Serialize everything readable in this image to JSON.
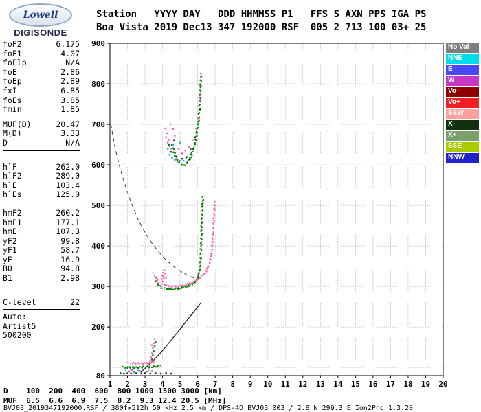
{
  "logo": {
    "name": "Lowell",
    "subtitle": "DIGISONDE"
  },
  "header": {
    "line1": "Station   YYYY DAY   DDD HHMMSS P1   FFS S AXN PPS IGA PS",
    "line2": "Boa Vista 2019 Dec13 347 192000 RSF  005 2 713 100 03+ 25"
  },
  "params": {
    "groups": [
      {
        "divider_after": true,
        "rows": [
          [
            "foF2",
            "6.175"
          ],
          [
            "foF1",
            "4.07"
          ],
          [
            "foFlp",
            "N/A"
          ],
          [
            "foE",
            "2.86"
          ],
          [
            "foEp",
            "2.89"
          ],
          [
            "fxI",
            "6.85"
          ],
          [
            "foEs",
            "3.85"
          ],
          [
            "fmin",
            "1.85"
          ]
        ]
      },
      {
        "divider_after": true,
        "rows": [
          [
            "MUF(D)",
            "20.47"
          ],
          [
            "M(D)",
            "3.33"
          ],
          [
            "D",
            "N/A"
          ]
        ]
      },
      {
        "gap_before": true,
        "rows": [
          [
            "h`F",
            "262.0"
          ],
          [
            "h`F2",
            "289.0"
          ],
          [
            "h`E",
            "103.4"
          ],
          [
            "h`Es",
            "125.0"
          ]
        ]
      },
      {
        "gap_before": true,
        "rows": [
          [
            "hmF2",
            "260.2"
          ],
          [
            "hmF1",
            "177.1"
          ],
          [
            "hmE",
            "107.3"
          ],
          [
            "yF2",
            "99.8"
          ],
          [
            "yF1",
            "58.7"
          ],
          [
            "yE",
            "16.9"
          ],
          [
            "B0",
            "94.8"
          ],
          [
            "B1",
            "2.98"
          ]
        ]
      },
      {
        "gap_before": true,
        "divider_before": true,
        "divider_after": true,
        "rows": [
          [
            "C-level",
            "22"
          ]
        ]
      },
      {
        "rows": [
          [
            "Auto:",
            ""
          ],
          [
            "Artist5",
            ""
          ],
          [
            "500200",
            ""
          ]
        ]
      }
    ]
  },
  "legend": {
    "items": [
      {
        "label": "No Val",
        "color": "#7f7f7f"
      },
      {
        "label": "NNE",
        "color": "#00dde8"
      },
      {
        "label": "E",
        "color": "#4848ff"
      },
      {
        "label": "W",
        "color": "#c438c4"
      },
      {
        "label": "Vo-",
        "color": "#8f0000"
      },
      {
        "label": "Vo+",
        "color": "#f02020"
      },
      {
        "label": "SSW",
        "color": "#ff9f9f"
      },
      {
        "label": "X-",
        "color": "#10300f"
      },
      {
        "label": "X+",
        "color": "#7aa06a"
      },
      {
        "label": "SSE",
        "color": "#a8cc00"
      },
      {
        "label": "NNW",
        "color": "#2222cc"
      }
    ]
  },
  "muf_table": {
    "d_label": "D",
    "d_values": [
      "100",
      "200",
      "400",
      "600",
      "800",
      "1000",
      "1500",
      "3000"
    ],
    "d_unit": "[km]",
    "muf_label": "MUF",
    "muf_values": [
      "6.5",
      "6.6",
      "6.9",
      "7.5",
      "8.2",
      "9.3",
      "12.4",
      "20.5"
    ],
    "muf_unit": "[MHz]"
  },
  "footer": {
    "status": "BVJ03_2019347192000.RSF / 380fx512h 50 kHz 2.5 km / DPS-4D BVJ03 003 / 2.8 N 299.3 E Ion2Png 1.3.20"
  },
  "chart_data": {
    "type": "scatter",
    "title": "Digisonde ionogram, Boa Vista, 2019 Dec 13, 19:20:00",
    "xlabel": "",
    "ylabel": "",
    "xlim": [
      1,
      20
    ],
    "ylim": [
      80,
      900
    ],
    "grid": true,
    "x_ticks": [
      1,
      2,
      3,
      4,
      5,
      6,
      7,
      8,
      9,
      10,
      11,
      12,
      13,
      14,
      15,
      16,
      17,
      18,
      19,
      20
    ],
    "y_ticks": [
      900,
      800,
      700,
      600,
      500,
      400,
      300,
      200,
      80
    ],
    "series": [
      {
        "name": "muf-transmission-curve",
        "color": "#333333",
        "style": "line",
        "dash": "6,4",
        "width": 1,
        "points": [
          [
            1.05,
            700
          ],
          [
            1.3,
            640
          ],
          [
            1.6,
            588
          ],
          [
            1.9,
            545
          ],
          [
            2.2,
            508
          ],
          [
            2.6,
            466
          ],
          [
            3.0,
            433
          ],
          [
            3.4,
            406
          ],
          [
            3.8,
            384
          ],
          [
            4.2,
            365
          ],
          [
            4.6,
            350
          ],
          [
            5.0,
            338
          ],
          [
            5.4,
            328
          ],
          [
            5.8,
            321
          ],
          [
            6.1,
            316
          ]
        ]
      },
      {
        "name": "true-height-profile",
        "color": "#222222",
        "style": "line",
        "width": 1.3,
        "points": [
          [
            2.75,
            88
          ],
          [
            3.0,
            98
          ],
          [
            3.3,
            110
          ],
          [
            3.6,
            123
          ],
          [
            3.9,
            137
          ],
          [
            4.2,
            152
          ],
          [
            4.5,
            168
          ],
          [
            4.8,
            184
          ],
          [
            5.1,
            200
          ],
          [
            5.4,
            217
          ],
          [
            5.7,
            233
          ],
          [
            5.9,
            244
          ],
          [
            6.05,
            252
          ],
          [
            6.15,
            258
          ],
          [
            6.18,
            260
          ]
        ]
      },
      {
        "name": "o-mode-f-trace",
        "color": "#007f00",
        "style": "dots",
        "size": 2.2,
        "points": [
          [
            3.65,
            312
          ],
          [
            3.75,
            305
          ],
          [
            3.85,
            300
          ],
          [
            3.95,
            297
          ],
          [
            4.1,
            295
          ],
          [
            4.3,
            293
          ],
          [
            4.5,
            293
          ],
          [
            4.7,
            294
          ],
          [
            4.9,
            295
          ],
          [
            5.1,
            297
          ],
          [
            5.3,
            299
          ],
          [
            5.5,
            302
          ],
          [
            5.7,
            306
          ],
          [
            5.85,
            311
          ],
          [
            6.0,
            320
          ],
          [
            6.08,
            332
          ],
          [
            6.13,
            348
          ],
          [
            6.17,
            372
          ],
          [
            6.2,
            405
          ],
          [
            6.22,
            440
          ],
          [
            6.25,
            475
          ],
          [
            6.28,
            505
          ],
          [
            6.3,
            520
          ]
        ]
      },
      {
        "name": "x-mode-f-trace",
        "color": "#ff5fa8",
        "style": "dots",
        "size": 2,
        "points": [
          [
            3.5,
            332
          ],
          [
            3.6,
            322
          ],
          [
            3.7,
            315
          ],
          [
            3.8,
            309
          ],
          [
            3.95,
            305
          ],
          [
            4.15,
            303
          ],
          [
            4.35,
            301
          ],
          [
            4.55,
            300
          ],
          [
            4.75,
            300
          ],
          [
            4.95,
            301
          ],
          [
            5.15,
            302
          ],
          [
            5.35,
            304
          ],
          [
            5.55,
            307
          ],
          [
            5.75,
            311
          ],
          [
            5.95,
            316
          ],
          [
            6.15,
            322
          ],
          [
            6.35,
            330
          ],
          [
            6.5,
            338
          ],
          [
            6.6,
            347
          ],
          [
            6.7,
            360
          ],
          [
            6.78,
            378
          ],
          [
            6.84,
            402
          ],
          [
            6.88,
            430
          ],
          [
            6.92,
            462
          ],
          [
            6.95,
            490
          ],
          [
            6.97,
            508
          ]
        ]
      },
      {
        "name": "f1-cusp-spread",
        "color": "#ff5fa8",
        "style": "scatter",
        "points": [
          [
            3.95,
            318
          ],
          [
            4.0,
            326
          ],
          [
            4.05,
            334
          ],
          [
            4.1,
            340
          ],
          [
            4.15,
            332
          ],
          [
            4.2,
            322
          ],
          [
            4.0,
            312
          ],
          [
            4.08,
            320
          ]
        ]
      },
      {
        "name": "o-mode-second-hop",
        "color": "#007f00",
        "style": "dots",
        "size": 2.2,
        "points": [
          [
            4.55,
            648
          ],
          [
            4.65,
            632
          ],
          [
            4.75,
            620
          ],
          [
            4.85,
            611
          ],
          [
            4.95,
            605
          ],
          [
            5.05,
            601
          ],
          [
            5.15,
            599
          ],
          [
            5.25,
            600
          ],
          [
            5.35,
            603
          ],
          [
            5.45,
            608
          ],
          [
            5.55,
            615
          ],
          [
            5.65,
            625
          ],
          [
            5.75,
            638
          ],
          [
            5.85,
            655
          ],
          [
            5.95,
            678
          ],
          [
            6.05,
            708
          ],
          [
            6.1,
            735
          ],
          [
            6.14,
            765
          ],
          [
            6.17,
            795
          ],
          [
            6.19,
            820
          ]
        ]
      },
      {
        "name": "spread-f-pink",
        "color": "#ff5fa8",
        "style": "scatter",
        "points": [
          [
            4.2,
            668
          ],
          [
            4.3,
            655
          ],
          [
            4.4,
            646
          ],
          [
            4.5,
            640
          ],
          [
            4.35,
            662
          ],
          [
            4.25,
            678
          ],
          [
            4.15,
            690
          ],
          [
            4.45,
            700
          ],
          [
            4.6,
            688
          ],
          [
            4.7,
            672
          ],
          [
            4.9,
            640
          ],
          [
            5.1,
            628
          ],
          [
            5.3,
            635
          ],
          [
            5.5,
            645
          ],
          [
            5.7,
            660
          ],
          [
            5.9,
            690
          ],
          [
            6.0,
            715
          ],
          [
            6.05,
            745
          ],
          [
            6.1,
            775
          ],
          [
            4.8,
            615
          ],
          [
            5.0,
            610
          ],
          [
            6.12,
            760
          ],
          [
            6.15,
            800
          ],
          [
            6.18,
            825
          ]
        ]
      },
      {
        "name": "spread-f-cyan",
        "color": "#00bcd0",
        "style": "scatter",
        "points": [
          [
            4.4,
            625
          ],
          [
            4.55,
            618
          ],
          [
            4.7,
            612
          ],
          [
            4.9,
            606
          ],
          [
            5.2,
            610
          ],
          [
            4.3,
            640
          ],
          [
            4.6,
            650
          ],
          [
            5.0,
            655
          ],
          [
            5.4,
            620
          ]
        ]
      },
      {
        "name": "spread-f-dark",
        "color": "#1c3a1c",
        "style": "scatter",
        "points": [
          [
            4.5,
            632
          ],
          [
            4.8,
            620
          ],
          [
            5.1,
            615
          ],
          [
            5.35,
            618
          ],
          [
            5.6,
            640
          ],
          [
            4.35,
            650
          ],
          [
            4.65,
            660
          ],
          [
            5.85,
            668
          ]
        ]
      },
      {
        "name": "es-layer-o",
        "color": "#007f00",
        "style": "dots",
        "size": 2.2,
        "points": [
          [
            1.75,
            101
          ],
          [
            2.0,
            100
          ],
          [
            2.3,
            100
          ],
          [
            2.6,
            100
          ],
          [
            2.9,
            101
          ],
          [
            3.2,
            101
          ],
          [
            3.5,
            102
          ],
          [
            3.7,
            103
          ],
          [
            3.85,
            104
          ]
        ]
      },
      {
        "name": "es-layer-x",
        "color": "#ff5fa8",
        "style": "dots",
        "size": 2,
        "points": [
          [
            2.05,
            112
          ],
          [
            2.3,
            111
          ],
          [
            2.6,
            110
          ],
          [
            2.9,
            110
          ],
          [
            3.1,
            111
          ],
          [
            3.3,
            112
          ],
          [
            3.5,
            114
          ]
        ]
      },
      {
        "name": "es-spread-pink",
        "color": "#ff5fa8",
        "style": "scatter",
        "points": [
          [
            3.35,
            125
          ],
          [
            3.4,
            135
          ],
          [
            3.45,
            148
          ],
          [
            3.5,
            160
          ],
          [
            3.55,
            170
          ],
          [
            3.42,
            122
          ],
          [
            3.48,
            142
          ],
          [
            3.38,
            155
          ],
          [
            3.3,
            118
          ]
        ]
      },
      {
        "name": "es-spread-green",
        "color": "#007f00",
        "style": "scatter",
        "points": [
          [
            3.4,
            120
          ],
          [
            3.45,
            130
          ],
          [
            3.5,
            140
          ],
          [
            3.55,
            152
          ],
          [
            3.6,
            163
          ]
        ]
      },
      {
        "name": "noise-black",
        "color": "#222222",
        "style": "scatter",
        "points": [
          [
            1.6,
            86
          ],
          [
            1.8,
            85
          ],
          [
            2.0,
            86
          ],
          [
            2.2,
            85
          ],
          [
            2.5,
            86
          ],
          [
            2.8,
            85
          ],
          [
            3.0,
            86
          ],
          [
            3.3,
            85
          ],
          [
            3.6,
            86
          ],
          [
            3.9,
            85
          ],
          [
            4.2,
            86
          ],
          [
            4.5,
            85
          ]
        ]
      },
      {
        "name": "noise-magenta",
        "color": "#cc44cc",
        "style": "scatter",
        "points": [
          [
            2.1,
            90
          ],
          [
            2.4,
            90
          ],
          [
            2.7,
            91
          ],
          [
            3.1,
            90
          ],
          [
            3.4,
            91
          ],
          [
            2.25,
            94
          ]
        ]
      },
      {
        "name": "noise-cyan",
        "color": "#00bcd0",
        "style": "scatter",
        "points": [
          [
            1.9,
            92
          ],
          [
            2.6,
            92
          ],
          [
            3.2,
            92
          ],
          [
            2.35,
            88
          ]
        ]
      }
    ]
  }
}
